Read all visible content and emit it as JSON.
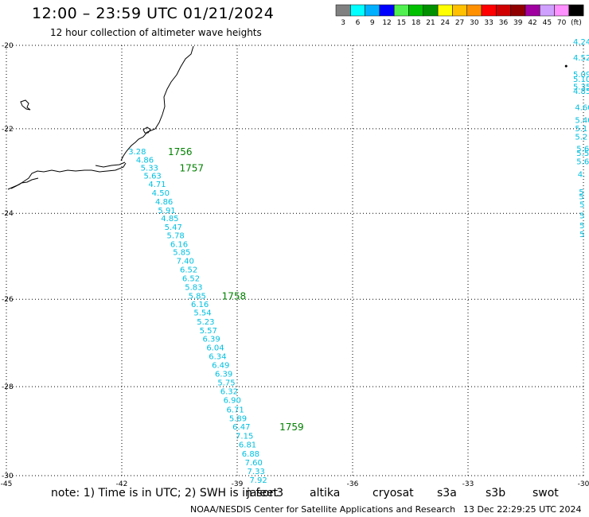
{
  "title": "12:00 – 23:59 UTC 01/21/2024",
  "subtitle": "12 hour collection of altimeter wave heights",
  "colorbar": {
    "colors": [
      "#808080",
      "#00ffff",
      "#00b0ff",
      "#0000ff",
      "#50f050",
      "#00c000",
      "#009000",
      "#ffff00",
      "#ffc000",
      "#ff9000",
      "#ff0000",
      "#d00000",
      "#900000",
      "#a000a0",
      "#d0a0ff",
      "#ff90ff",
      "#000000"
    ],
    "labels": [
      "3",
      "6",
      "9",
      "12",
      "15",
      "18",
      "21",
      "24",
      "27",
      "30",
      "33",
      "36",
      "39",
      "42",
      "45",
      "70",
      "(ft)"
    ]
  },
  "map": {
    "lon_range": [
      -45,
      -30
    ],
    "lat_range": [
      -30,
      -20
    ],
    "lon_ticks": [
      "-45",
      "-42",
      "-39",
      "-36",
      "-33",
      "-30"
    ],
    "lat_ticks": [
      "-20",
      "-22",
      "-24",
      "-26",
      "-28",
      "-30"
    ],
    "grid": "dotted",
    "track_color": "#00c0e0",
    "time_color": "#008000",
    "main_track": [
      {
        "lon": -41.6,
        "lat": -22.53,
        "v": "3.28"
      },
      {
        "lon": -41.4,
        "lat": -22.73,
        "v": "4.86"
      },
      {
        "lon": -41.28,
        "lat": -22.92,
        "v": "5.33"
      },
      {
        "lon": -41.2,
        "lat": -23.11,
        "v": "5.63"
      },
      {
        "lon": -41.08,
        "lat": -23.3,
        "v": "4.71"
      },
      {
        "lon": -40.99,
        "lat": -23.51,
        "v": "4.50"
      },
      {
        "lon": -40.9,
        "lat": -23.72,
        "v": "4.86"
      },
      {
        "lon": -40.83,
        "lat": -23.92,
        "v": "5.91"
      },
      {
        "lon": -40.75,
        "lat": -24.11,
        "v": "4.85"
      },
      {
        "lon": -40.66,
        "lat": -24.31,
        "v": "5.47"
      },
      {
        "lon": -40.6,
        "lat": -24.51,
        "v": "5.78"
      },
      {
        "lon": -40.51,
        "lat": -24.71,
        "v": "6.16"
      },
      {
        "lon": -40.44,
        "lat": -24.9,
        "v": "5.85"
      },
      {
        "lon": -40.35,
        "lat": -25.1,
        "v": "7.40"
      },
      {
        "lon": -40.26,
        "lat": -25.31,
        "v": "6.52"
      },
      {
        "lon": -40.2,
        "lat": -25.51,
        "v": "6.52"
      },
      {
        "lon": -40.13,
        "lat": -25.71,
        "v": "5.83"
      },
      {
        "lon": -40.04,
        "lat": -25.91,
        "v": "5.85"
      },
      {
        "lon": -39.97,
        "lat": -26.11,
        "v": "6.16"
      },
      {
        "lon": -39.9,
        "lat": -26.3,
        "v": "5.54"
      },
      {
        "lon": -39.82,
        "lat": -26.51,
        "v": "5.23"
      },
      {
        "lon": -39.75,
        "lat": -26.71,
        "v": "5.57"
      },
      {
        "lon": -39.67,
        "lat": -26.9,
        "v": "6.39"
      },
      {
        "lon": -39.57,
        "lat": -27.1,
        "v": "6.04"
      },
      {
        "lon": -39.51,
        "lat": -27.3,
        "v": "6.34"
      },
      {
        "lon": -39.43,
        "lat": -27.5,
        "v": "6.49"
      },
      {
        "lon": -39.35,
        "lat": -27.7,
        "v": "6.39"
      },
      {
        "lon": -39.28,
        "lat": -27.9,
        "v": "5.75"
      },
      {
        "lon": -39.21,
        "lat": -28.1,
        "v": "6.32"
      },
      {
        "lon": -39.13,
        "lat": -28.3,
        "v": "6.90"
      },
      {
        "lon": -39.05,
        "lat": -28.51,
        "v": "6.71"
      },
      {
        "lon": -38.98,
        "lat": -28.71,
        "v": "5.89"
      },
      {
        "lon": -38.89,
        "lat": -28.9,
        "v": "6.47"
      },
      {
        "lon": -38.81,
        "lat": -29.1,
        "v": "7.15"
      },
      {
        "lon": -38.73,
        "lat": -29.3,
        "v": "6.81"
      },
      {
        "lon": -38.65,
        "lat": -29.5,
        "v": "6.88"
      },
      {
        "lon": -38.57,
        "lat": -29.7,
        "v": "7.60"
      },
      {
        "lon": -38.51,
        "lat": -29.89,
        "v": "7.33"
      },
      {
        "lon": -38.45,
        "lat": -30.09,
        "v": "7.92"
      }
    ],
    "edge_track": [
      {
        "lon": -30.27,
        "lat": -19.9,
        "v": "4.24"
      },
      {
        "lon": -30.27,
        "lat": -20.29,
        "v": "4.52"
      },
      {
        "lon": -30.27,
        "lat": -20.69,
        "v": "5.09"
      },
      {
        "lon": -30.27,
        "lat": -20.8,
        "v": "5.10"
      },
      {
        "lon": -30.27,
        "lat": -20.99,
        "v": "5.35"
      },
      {
        "lon": -30.27,
        "lat": -21.09,
        "v": "4.85"
      },
      {
        "lon": -30.22,
        "lat": -21.48,
        "v": "4.60"
      },
      {
        "lon": -30.22,
        "lat": -21.78,
        "v": "5.40"
      },
      {
        "lon": -30.22,
        "lat": -21.98,
        "v": "5.1"
      },
      {
        "lon": -30.22,
        "lat": -22.18,
        "v": "5.2"
      },
      {
        "lon": -30.18,
        "lat": -22.47,
        "v": "5.6"
      },
      {
        "lon": -30.18,
        "lat": -22.57,
        "v": "5.5"
      },
      {
        "lon": -30.18,
        "lat": -22.77,
        "v": "5.6"
      },
      {
        "lon": -30.15,
        "lat": -23.07,
        "v": "4."
      },
      {
        "lon": -30.12,
        "lat": -23.49,
        "v": "5"
      },
      {
        "lon": -30.12,
        "lat": -23.59,
        "v": "5"
      },
      {
        "lon": -30.1,
        "lat": -23.78,
        "v": "5"
      },
      {
        "lon": -30.1,
        "lat": -24.04,
        "v": "5"
      },
      {
        "lon": -30.1,
        "lat": -24.28,
        "v": "5"
      },
      {
        "lon": -30.1,
        "lat": -24.48,
        "v": "5"
      }
    ],
    "time_labels": [
      {
        "lon": -40.8,
        "lat": -22.53,
        "t": "1756"
      },
      {
        "lon": -40.5,
        "lat": -22.92,
        "t": "1757"
      },
      {
        "lon": -39.4,
        "lat": -25.91,
        "t": "1758"
      },
      {
        "lon": -37.9,
        "lat": -28.9,
        "t": "1759"
      }
    ],
    "marker": {
      "lon": -30.45,
      "lat": -20.5
    }
  },
  "note": {
    "text": "note: 1) Time is in UTC; 2) SWH is in feet",
    "satellites": [
      {
        "name": "jason3",
        "color": "#008000"
      },
      {
        "name": "altika",
        "color": "#ff9900"
      },
      {
        "name": "cryosat",
        "color": "#ff0000"
      },
      {
        "name": "s3a",
        "color": "#990000"
      },
      {
        "name": "s3b",
        "color": "#c0a0ff"
      },
      {
        "name": "swot",
        "color": "#ff90ff"
      }
    ]
  },
  "credit": "NOAA/NESDIS Center for Satellite Applications and Research",
  "timestamp": "13 Dec 22:29:25 UTC 2024"
}
